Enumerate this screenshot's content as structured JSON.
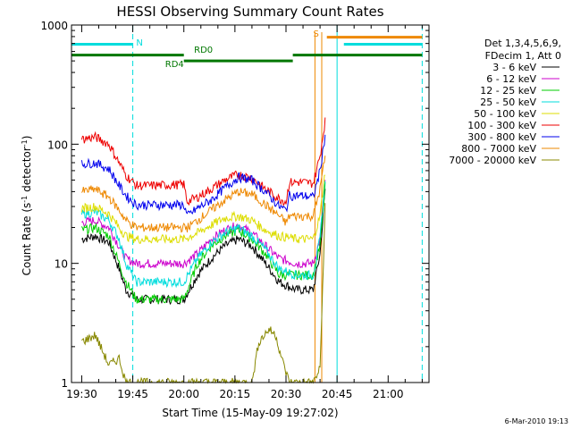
{
  "chart_data": {
    "type": "line",
    "title": "HESSI Observing Summary Count Rates",
    "xlabel": "Start Time (15-May-09 19:27:02)",
    "ylabel_main": "Count Rate (s",
    "ylabel_sup1": "-1",
    "ylabel_mid": " detector",
    "ylabel_sup2": "-1",
    "ylabel_end": ")",
    "yscale": "log",
    "ylim": [
      1,
      1000
    ],
    "xlim_minutes": [
      -3,
      102
    ],
    "xticks": [
      {
        "m": 0,
        "label": "19:30"
      },
      {
        "m": 15,
        "label": "19:45"
      },
      {
        "m": 30,
        "label": "20:00"
      },
      {
        "m": 45,
        "label": "20:15"
      },
      {
        "m": 60,
        "label": "20:30"
      },
      {
        "m": 75,
        "label": "20:45"
      },
      {
        "m": 90,
        "label": "21:00"
      }
    ],
    "yticks": [
      {
        "v": 1,
        "label": "1"
      },
      {
        "v": 10,
        "label": "10"
      },
      {
        "v": 100,
        "label": "100"
      },
      {
        "v": 1000,
        "label": "1000"
      }
    ],
    "legend_header": [
      "Det 1,3,4,5,6,9,",
      "FDecim 1, Att 0"
    ],
    "legend_position": "right",
    "series": [
      {
        "name": "3 - 6 keV",
        "color": "#000000",
        "points": [
          [
            0,
            16
          ],
          [
            4,
            17
          ],
          [
            8,
            15
          ],
          [
            11,
            9
          ],
          [
            13,
            6
          ],
          [
            16,
            5
          ],
          [
            20,
            5
          ],
          [
            30,
            5
          ],
          [
            34,
            8
          ],
          [
            38,
            11
          ],
          [
            42,
            14
          ],
          [
            46,
            16
          ],
          [
            50,
            14
          ],
          [
            54,
            10
          ],
          [
            58,
            7
          ],
          [
            63,
            6
          ],
          [
            68,
            6
          ],
          [
            70,
            12
          ],
          [
            71.5,
            42
          ]
        ]
      },
      {
        "name": "6 - 12 keV",
        "color": "#cc00cc",
        "points": [
          [
            0,
            22
          ],
          [
            4,
            23
          ],
          [
            8,
            20
          ],
          [
            11,
            14
          ],
          [
            13,
            11
          ],
          [
            16,
            10
          ],
          [
            20,
            10
          ],
          [
            30,
            10
          ],
          [
            34,
            12
          ],
          [
            38,
            16
          ],
          [
            42,
            19
          ],
          [
            46,
            21
          ],
          [
            50,
            18
          ],
          [
            54,
            14
          ],
          [
            58,
            11
          ],
          [
            63,
            10
          ],
          [
            68,
            10
          ],
          [
            70,
            16
          ],
          [
            71.5,
            48
          ]
        ]
      },
      {
        "name": "12 - 25 keV",
        "color": "#00cc00",
        "points": [
          [
            0,
            19
          ],
          [
            4,
            20
          ],
          [
            8,
            17
          ],
          [
            11,
            10
          ],
          [
            13,
            7
          ],
          [
            16,
            5
          ],
          [
            20,
            5
          ],
          [
            30,
            5
          ],
          [
            34,
            10
          ],
          [
            38,
            14
          ],
          [
            42,
            17
          ],
          [
            46,
            19
          ],
          [
            50,
            16
          ],
          [
            54,
            12
          ],
          [
            58,
            8
          ],
          [
            63,
            8
          ],
          [
            68,
            8
          ],
          [
            70,
            14
          ],
          [
            71.5,
            44
          ]
        ]
      },
      {
        "name": "25 - 50 keV",
        "color": "#00dddd",
        "points": [
          [
            0,
            26
          ],
          [
            4,
            27
          ],
          [
            8,
            23
          ],
          [
            11,
            16
          ],
          [
            13,
            10
          ],
          [
            16,
            7
          ],
          [
            20,
            7
          ],
          [
            30,
            7
          ],
          [
            34,
            11
          ],
          [
            38,
            15
          ],
          [
            42,
            18
          ],
          [
            46,
            20
          ],
          [
            50,
            17
          ],
          [
            54,
            13
          ],
          [
            58,
            9
          ],
          [
            63,
            8
          ],
          [
            68,
            8
          ],
          [
            70,
            16
          ],
          [
            71.5,
            52
          ]
        ]
      },
      {
        "name": "50 - 100 keV",
        "color": "#dddd00",
        "points": [
          [
            0,
            29
          ],
          [
            4,
            30
          ],
          [
            8,
            26
          ],
          [
            11,
            20
          ],
          [
            13,
            17
          ],
          [
            16,
            16
          ],
          [
            20,
            16
          ],
          [
            30,
            16
          ],
          [
            34,
            18
          ],
          [
            38,
            21
          ],
          [
            42,
            24
          ],
          [
            46,
            25
          ],
          [
            50,
            23
          ],
          [
            54,
            19
          ],
          [
            58,
            17
          ],
          [
            63,
            16
          ],
          [
            68,
            16
          ],
          [
            70,
            25
          ],
          [
            71.5,
            60
          ]
        ]
      },
      {
        "name": "100 - 300 keV",
        "color": "#ee0000",
        "points": [
          [
            0,
            110
          ],
          [
            4,
            115
          ],
          [
            8,
            100
          ],
          [
            11,
            70
          ],
          [
            13,
            55
          ],
          [
            16,
            45
          ],
          [
            20,
            45
          ],
          [
            30,
            46
          ],
          [
            31,
            33
          ],
          [
            34,
            36
          ],
          [
            38,
            42
          ],
          [
            42,
            50
          ],
          [
            46,
            56
          ],
          [
            50,
            52
          ],
          [
            54,
            42
          ],
          [
            58,
            35
          ],
          [
            60,
            33
          ],
          [
            61,
            48
          ],
          [
            65,
            48
          ],
          [
            68,
            47
          ],
          [
            70,
            80
          ],
          [
            71.5,
            160
          ]
        ]
      },
      {
        "name": "300 - 800 keV",
        "color": "#0000ee",
        "points": [
          [
            0,
            68
          ],
          [
            4,
            70
          ],
          [
            8,
            62
          ],
          [
            11,
            45
          ],
          [
            13,
            37
          ],
          [
            16,
            31
          ],
          [
            20,
            31
          ],
          [
            30,
            31
          ],
          [
            31,
            25
          ],
          [
            34,
            29
          ],
          [
            38,
            34
          ],
          [
            42,
            43
          ],
          [
            46,
            53
          ],
          [
            50,
            50
          ],
          [
            54,
            40
          ],
          [
            58,
            30
          ],
          [
            60,
            28
          ],
          [
            61,
            37
          ],
          [
            65,
            37
          ],
          [
            68,
            36
          ],
          [
            70,
            60
          ],
          [
            71.5,
            120
          ]
        ]
      },
      {
        "name": "800 - 7000 keV",
        "color": "#ee8800",
        "points": [
          [
            0,
            40
          ],
          [
            4,
            42
          ],
          [
            8,
            36
          ],
          [
            11,
            28
          ],
          [
            13,
            23
          ],
          [
            16,
            20
          ],
          [
            20,
            20
          ],
          [
            30,
            20
          ],
          [
            31,
            20
          ],
          [
            34,
            23
          ],
          [
            38,
            28
          ],
          [
            42,
            34
          ],
          [
            46,
            40
          ],
          [
            50,
            38
          ],
          [
            54,
            31
          ],
          [
            58,
            25
          ],
          [
            60,
            22
          ],
          [
            61,
            25
          ],
          [
            65,
            25
          ],
          [
            68,
            25
          ],
          [
            70,
            42
          ],
          [
            71.5,
            80
          ]
        ]
      },
      {
        "name": "7000 - 20000 keV",
        "color": "#888800",
        "points": [
          [
            0,
            2.2
          ],
          [
            4,
            2.5
          ],
          [
            8,
            1.4
          ],
          [
            11,
            1.6
          ],
          [
            13,
            1
          ],
          [
            16,
            1
          ],
          [
            50,
            1
          ],
          [
            52,
            2.2
          ],
          [
            55,
            2.8
          ],
          [
            57,
            2.5
          ],
          [
            59,
            1.5
          ],
          [
            61,
            1
          ],
          [
            68,
            1
          ],
          [
            70,
            1.3
          ],
          [
            71.5,
            30
          ]
        ]
      }
    ],
    "cyan_vlines_min": [
      -3,
      15,
      75,
      100
    ],
    "orange_vlines_min": [
      68.5,
      70.5
    ],
    "annotations": [
      {
        "text": "N",
        "color": "#00dddd",
        "x": 16,
        "y": 670
      },
      {
        "text": "S",
        "color": "#ee8800",
        "x": 68,
        "y": 800
      },
      {
        "text": "RD0",
        "color": "#007700",
        "x": 33,
        "y": 585
      },
      {
        "text": "RD4",
        "color": "#007700",
        "x": 24.5,
        "y": 445
      }
    ],
    "flag_bars": [
      {
        "name": "N",
        "color": "#00dddd",
        "y": 690,
        "segments": [
          [
            -3,
            15
          ],
          [
            77,
            100
          ]
        ]
      },
      {
        "name": "S",
        "color": "#ee8800",
        "y": 790,
        "segments": [
          [
            72,
            100
          ]
        ]
      },
      {
        "name": "RD0",
        "color": "#007700",
        "y": 560,
        "segments": [
          [
            -3,
            30
          ],
          [
            62,
            100
          ]
        ]
      },
      {
        "name": "RD4",
        "color": "#007700",
        "y": 500,
        "segments": [
          [
            30,
            62
          ]
        ]
      }
    ]
  },
  "footer": {
    "timestamp": "6-Mar-2010 19:13"
  }
}
